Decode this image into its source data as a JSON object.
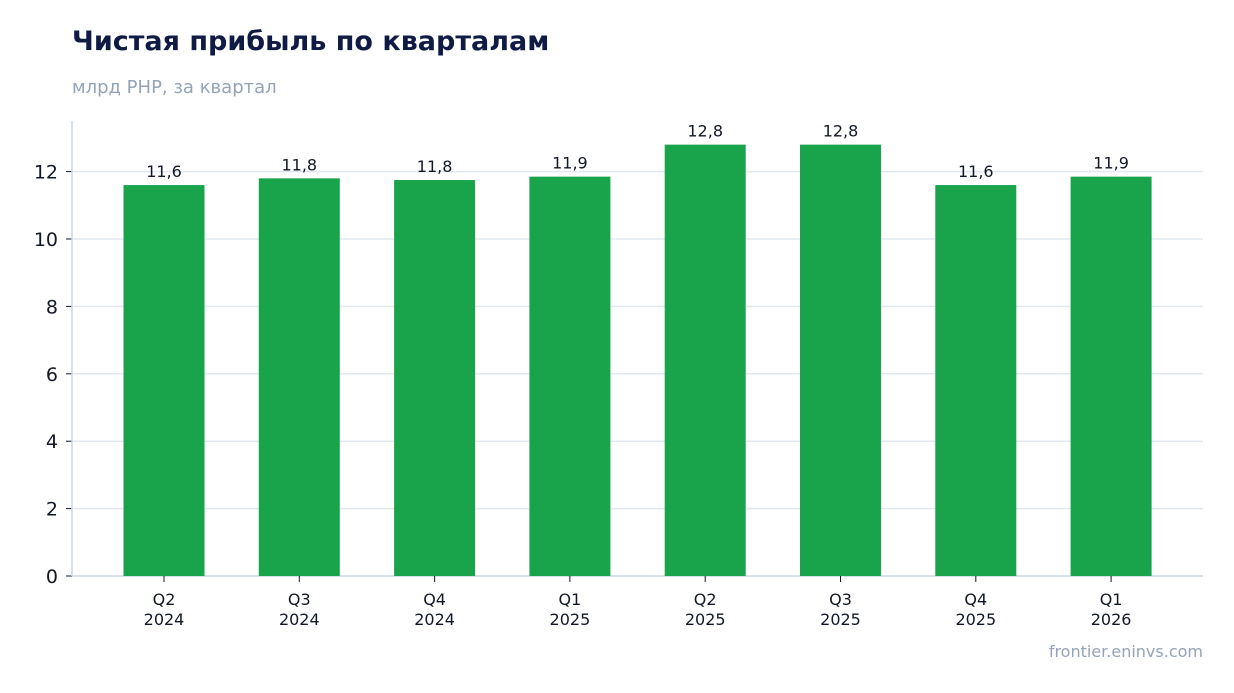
{
  "header": {
    "title": "Чистая прибыль по кварталам",
    "subtitle": "млрд РНР, за квартал"
  },
  "footer": {
    "source": "frontier.eninvs.com"
  },
  "colors": {
    "bar": "#19a34a",
    "grid": "#e2e8f0",
    "axis": "#cbd5e1",
    "title": "#0f1b45",
    "muted": "#94a3b8"
  },
  "chart_data": {
    "type": "bar",
    "title": "Чистая прибыль по кварталам",
    "subtitle": "млрд РНР, за квартал",
    "categories": [
      [
        "Q2",
        "2024"
      ],
      [
        "Q3",
        "2024"
      ],
      [
        "Q4",
        "2024"
      ],
      [
        "Q1",
        "2025"
      ],
      [
        "Q2",
        "2025"
      ],
      [
        "Q3",
        "2025"
      ],
      [
        "Q4",
        "2025"
      ],
      [
        "Q1",
        "2026"
      ]
    ],
    "values": [
      11.6,
      11.8,
      11.75,
      11.85,
      12.8,
      12.8,
      11.6,
      11.85
    ],
    "value_labels": [
      "11,6",
      "11,8",
      "11,8",
      "11,9",
      "12,8",
      "12,8",
      "11,6",
      "11,9"
    ],
    "yticks": [
      0,
      2,
      4,
      6,
      8,
      10,
      12
    ],
    "ylim": [
      0,
      13.5
    ],
    "grid": true,
    "xlabel": "",
    "ylabel": ""
  }
}
